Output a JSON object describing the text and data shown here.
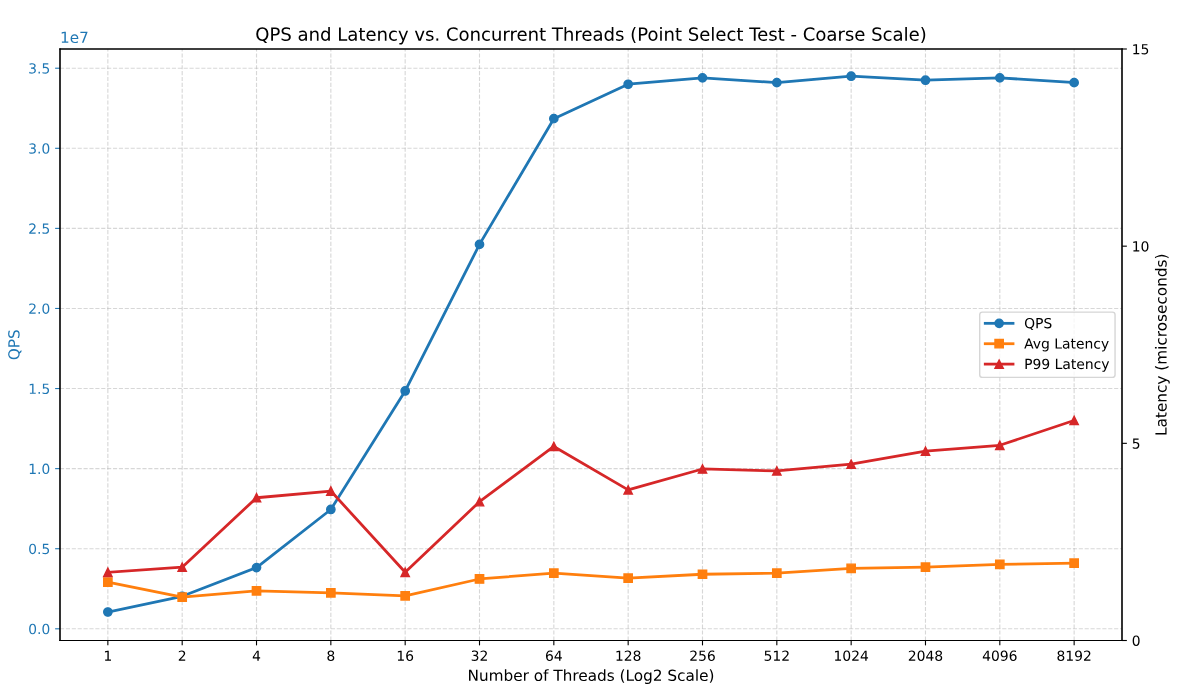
{
  "chart_data": {
    "type": "line",
    "title": "QPS and Latency vs. Concurrent Threads (Point Select Test - Coarse Scale)",
    "xlabel": "Number of Threads (Log2 Scale)",
    "ylabel": "QPS",
    "y2label": "Latency (microseconds)",
    "x": [
      1,
      2,
      4,
      8,
      16,
      32,
      64,
      128,
      256,
      512,
      1024,
      2048,
      4096,
      8192
    ],
    "log": "x",
    "xlim": [
      0.64,
      12800
    ],
    "xticks": [
      1,
      2,
      4,
      8,
      16,
      32,
      64,
      128,
      256,
      512,
      1024,
      2048,
      4096,
      8192
    ],
    "ylim": [
      -0.073,
      3.62
    ],
    "yticks": [
      {
        "value": 0,
        "label": "0.0"
      },
      0.5,
      {
        "value": 1,
        "label": "1.0"
      },
      1.5,
      {
        "value": 2,
        "label": "2.0"
      },
      2.5,
      {
        "value": 3,
        "label": "3.0"
      },
      3.5
    ],
    "y2lim": [
      0,
      15
    ],
    "y2ticks": [
      0,
      5,
      10,
      15
    ],
    "annotations": [
      "1e7"
    ],
    "grid": true,
    "legend": "right",
    "line_style": "solid",
    "series": [
      {
        "name": "QPS",
        "color": "#1f77b4",
        "marker": "circle",
        "values": [
          0.105,
          0.203,
          0.382,
          0.745,
          1.485,
          2.4,
          3.185,
          3.4,
          3.44,
          3.41,
          3.45,
          3.425,
          3.44,
          3.41
        ]
      },
      {
        "name": "Avg Latency",
        "color": "#ff7f0e",
        "marker": "square",
        "axis": "y2",
        "values": [
          1.48,
          1.1,
          1.26,
          1.21,
          1.13,
          1.56,
          1.71,
          1.58,
          1.68,
          1.71,
          1.83,
          1.86,
          1.93,
          1.96
        ]
      },
      {
        "name": "P99 Latency",
        "color": "#d62728",
        "marker": "triangle",
        "axis": "y2",
        "values": [
          1.73,
          1.86,
          3.62,
          3.79,
          1.73,
          3.52,
          4.92,
          3.82,
          4.35,
          4.3,
          4.47,
          4.8,
          4.95,
          5.58
        ]
      }
    ]
  }
}
